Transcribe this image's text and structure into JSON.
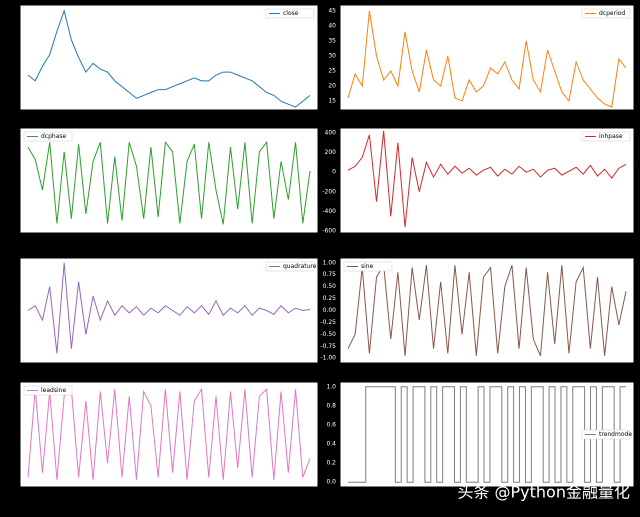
{
  "chart_data": [
    {
      "type": "line",
      "series": [
        {
          "name": "close",
          "color": "#1f77b4",
          "values": [
            24,
            22,
            27,
            31,
            39,
            46,
            36,
            30,
            25,
            28,
            26,
            25,
            22,
            20,
            18,
            16,
            17,
            18,
            19,
            19,
            20,
            21,
            22,
            23,
            22,
            22,
            24,
            25,
            25,
            24,
            23,
            22,
            20,
            18,
            17,
            15,
            14,
            13,
            15,
            17
          ]
        }
      ],
      "ylim": [
        12,
        48
      ],
      "legend": "upper right"
    },
    {
      "type": "line",
      "series": [
        {
          "name": "dcperiod",
          "color": "#ff7f0e",
          "values": [
            16,
            24,
            20,
            45,
            30,
            22,
            25,
            20,
            38,
            25,
            18,
            32,
            22,
            20,
            30,
            16,
            15,
            22,
            18,
            20,
            26,
            24,
            28,
            22,
            19,
            35,
            22,
            18,
            32,
            25,
            18,
            15,
            28,
            22,
            19,
            16,
            14,
            13,
            29,
            26
          ]
        }
      ],
      "ylim": [
        12,
        47
      ],
      "yticks": [
        15,
        20,
        25,
        30,
        35,
        40,
        45
      ],
      "legend": "upper right"
    },
    {
      "type": "line",
      "series": [
        {
          "name": "dcphase",
          "color": "#2ca02c",
          "values": [
            250,
            120,
            -200,
            300,
            -550,
            200,
            -500,
            280,
            -450,
            100,
            300,
            -550,
            150,
            -520,
            300,
            50,
            -500,
            250,
            -480,
            300,
            200,
            -550,
            100,
            280,
            -500,
            300,
            -200,
            -560,
            250,
            -400,
            300,
            -550,
            200,
            300,
            -500,
            100,
            -300,
            300,
            -550,
            0
          ]
        }
      ],
      "ylim": [
        -650,
        450
      ],
      "legend": "upper left"
    },
    {
      "type": "line",
      "series": [
        {
          "name": "inhpase",
          "color": "#d62728",
          "values": [
            20,
            60,
            150,
            380,
            -300,
            420,
            -450,
            300,
            -560,
            150,
            -200,
            100,
            -50,
            80,
            -20,
            60,
            -10,
            40,
            -30,
            20,
            50,
            -40,
            30,
            -20,
            60,
            0,
            30,
            -50,
            20,
            40,
            -30,
            10,
            50,
            -20,
            70,
            -40,
            30,
            -60,
            40,
            80
          ]
        }
      ],
      "ylim": [
        -620,
        450
      ],
      "yticks": [
        400,
        200,
        0,
        -200,
        -400,
        -600
      ],
      "legend": "upper right"
    },
    {
      "type": "line",
      "series": [
        {
          "name": "quadrature",
          "color": "#9467bd",
          "values": [
            0,
            0.1,
            -0.2,
            0.5,
            -0.9,
            1.0,
            -0.8,
            0.6,
            -0.5,
            0.3,
            -0.2,
            0.2,
            -0.1,
            0.1,
            -0.05,
            0.08,
            -0.1,
            0.05,
            -0.05,
            0.1,
            0,
            -0.1,
            0.08,
            -0.05,
            0.1,
            -0.08,
            0.2,
            -0.1,
            0.05,
            -0.05,
            0.1,
            -0.1,
            0.05,
            0,
            -0.08,
            0.1,
            -0.05,
            0.05,
            0,
            0.02
          ]
        }
      ],
      "ylim": [
        -1.1,
        1.1
      ],
      "legend": "upper right"
    },
    {
      "type": "line",
      "series": [
        {
          "name": "sine",
          "color": "#8c564b",
          "values": [
            -0.8,
            -0.5,
            0.9,
            -0.9,
            0.7,
            0.95,
            -0.6,
            0.8,
            -0.95,
            0.9,
            -0.2,
            0.95,
            -0.8,
            0.6,
            -0.9,
            0.95,
            -0.5,
            0.8,
            -0.95,
            0.7,
            0.9,
            -0.9,
            0.5,
            0.95,
            -0.8,
            0.9,
            -0.6,
            -0.95,
            0.8,
            -0.7,
            0.95,
            -0.9,
            0.6,
            0.9,
            -0.8,
            0.7,
            -0.95,
            0.5,
            -0.3,
            0.4
          ]
        }
      ],
      "ylim": [
        -1.1,
        1.1
      ],
      "yticks": [
        {
          "value": 1,
          "label": "1.00"
        },
        0.75,
        {
          "value": 0.5,
          "label": "0.50"
        },
        0.25,
        {
          "value": 0,
          "label": "0.00"
        },
        -0.25,
        {
          "value": -0.5,
          "label": "-0.50"
        },
        -0.75,
        {
          "value": -1,
          "label": "-1.00"
        }
      ],
      "legend": "upper left"
    },
    {
      "type": "line",
      "series": [
        {
          "name": "leadsine",
          "color": "#e377c2",
          "values": [
            -0.9,
            0.95,
            -0.8,
            0.9,
            -0.95,
            0.8,
            0.95,
            -0.9,
            0.7,
            -0.95,
            0.9,
            -0.6,
            0.95,
            -0.9,
            0.8,
            -0.95,
            0.9,
            0.6,
            -0.9,
            0.95,
            -0.8,
            0.9,
            -0.95,
            0.7,
            0.95,
            -0.9,
            0.8,
            -0.95,
            0.9,
            -0.7,
            0.95,
            -0.9,
            0.8,
            0.95,
            -0.95,
            0.9,
            -0.8,
            0.95,
            -0.9,
            -0.5
          ]
        }
      ],
      "ylim": [
        -1.1,
        1.1
      ],
      "legend": "upper left"
    },
    {
      "type": "line",
      "step": true,
      "series": [
        {
          "name": "trendmode",
          "color": "#7f7f7f",
          "values": [
            0,
            0,
            0,
            1,
            1,
            1,
            1,
            1,
            0,
            1,
            0,
            1,
            1,
            0,
            1,
            0,
            1,
            1,
            0,
            1,
            0,
            0,
            1,
            0,
            1,
            1,
            0,
            1,
            0,
            1,
            0,
            1,
            1,
            0,
            1,
            0,
            1,
            0,
            1,
            1,
            0,
            1,
            0,
            1,
            1,
            0,
            1,
            1
          ]
        }
      ],
      "ylim": [
        -0.05,
        1.05
      ],
      "yticks": [
        {
          "value": 0,
          "label": "0.0"
        },
        0.2,
        0.4,
        0.6,
        0.8,
        {
          "value": 1,
          "label": "1.0"
        }
      ],
      "legend": "center right"
    }
  ],
  "watermark": "头条 @Python金融量化"
}
